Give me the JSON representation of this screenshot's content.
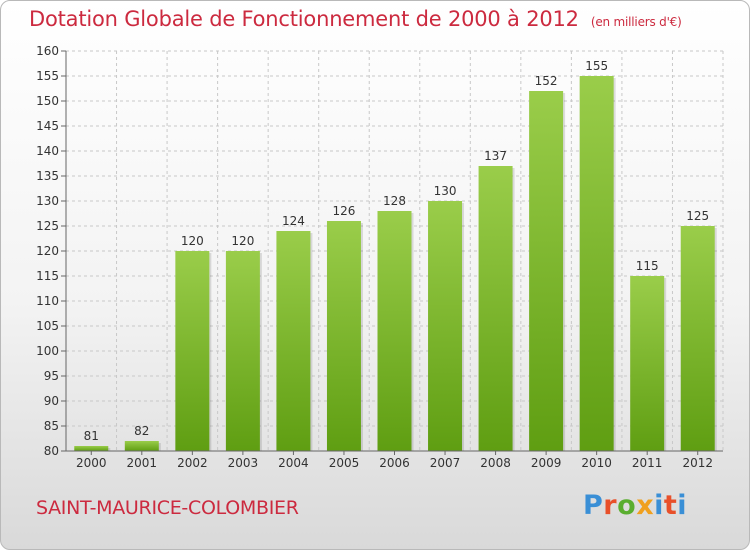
{
  "header": {
    "title": "Dotation Globale de Fonctionnement de 2000 à 2012",
    "unit": "(en milliers d'€)"
  },
  "footer": {
    "commune": "SAINT-MAURICE-COLOMBIER",
    "brand": "Proxiti"
  },
  "colors": {
    "bar_top": "#9acd4a",
    "bar_bottom": "#5f9e12",
    "accent_text": "#cc2a3f"
  },
  "chart_data": {
    "type": "bar",
    "title": "Dotation Globale de Fonctionnement de 2000 à 2012",
    "subtitle": "(en milliers d'€)",
    "xlabel": "",
    "ylabel": "",
    "categories": [
      "2000",
      "2001",
      "2002",
      "2003",
      "2004",
      "2005",
      "2006",
      "2007",
      "2008",
      "2009",
      "2010",
      "2011",
      "2012"
    ],
    "values": [
      81,
      82,
      120,
      120,
      124,
      126,
      128,
      130,
      137,
      152,
      155,
      115,
      125
    ],
    "ylim": [
      80,
      160
    ],
    "yticks": [
      80,
      85,
      90,
      95,
      100,
      105,
      110,
      115,
      120,
      125,
      130,
      135,
      140,
      145,
      150,
      155,
      160
    ],
    "grid": true,
    "legend": "none"
  }
}
